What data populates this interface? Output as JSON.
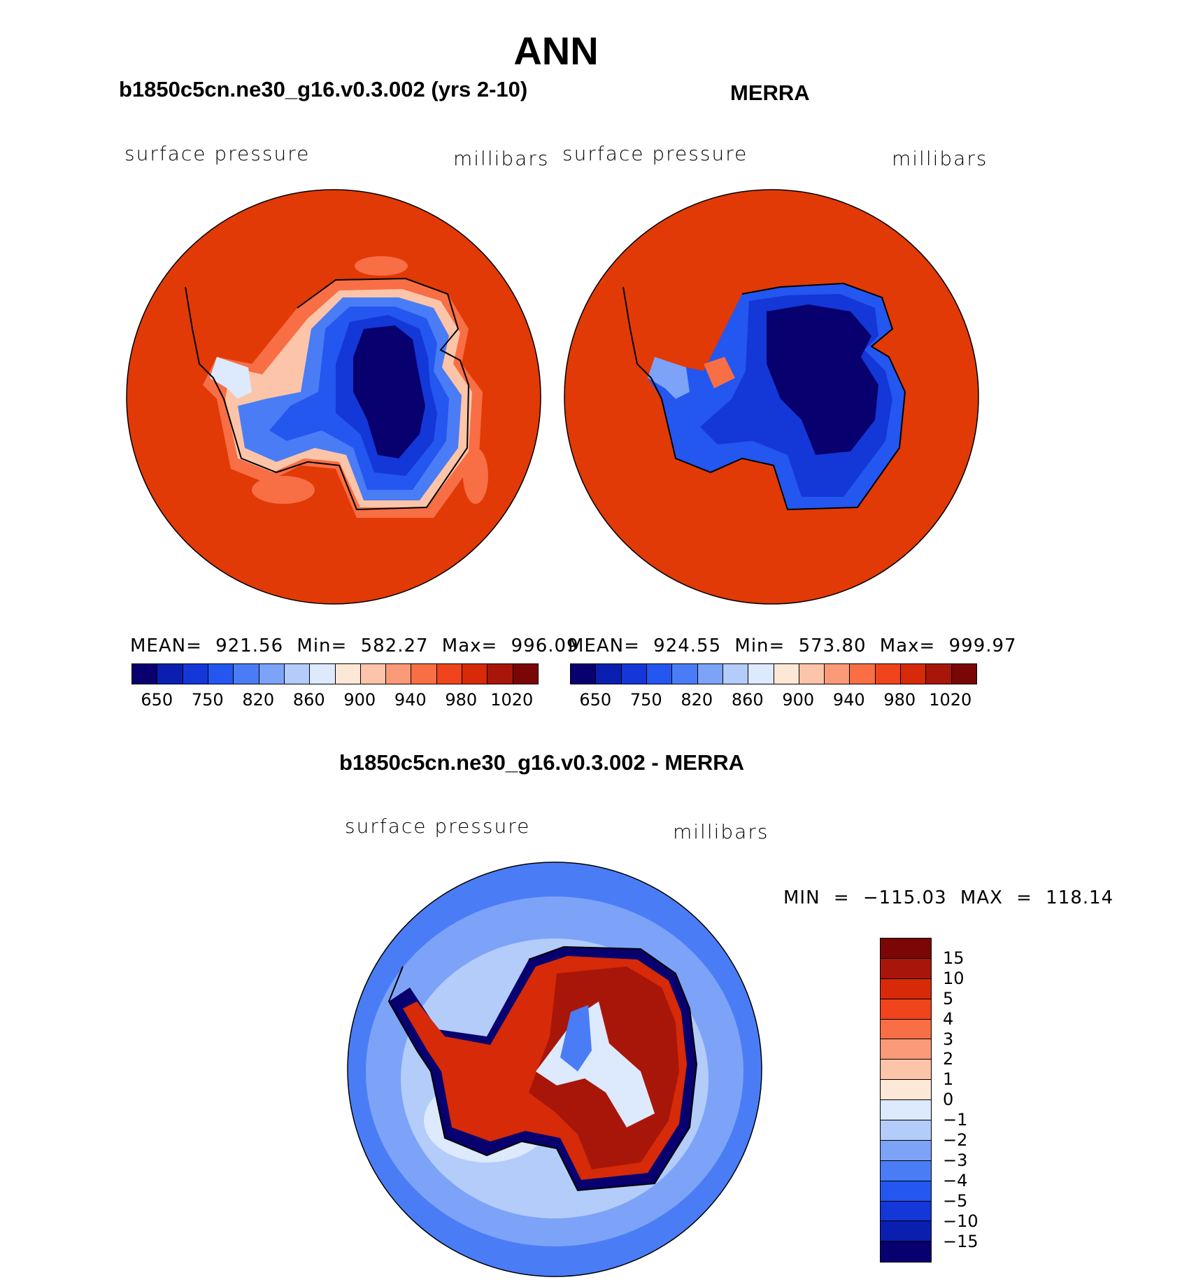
{
  "title": "ANN",
  "panels": [
    {
      "title": "b1850c5cn.ne30_g16.v0.3.002 (yrs 2-10)",
      "left_label": "surface pressure",
      "right_label": "millibars",
      "stats": "MEAN= 921.56   Min= 582.27   Max= 996.09"
    },
    {
      "title": "MERRA",
      "left_label": "surface pressure",
      "right_label": "millibars",
      "stats": "MEAN= 924.55   Min= 573.80   Max= 999.97"
    }
  ],
  "diff": {
    "title": "b1850c5cn.ne30_g16.v0.3.002 - MERRA",
    "left_label": "surface pressure",
    "right_label": "millibars",
    "stats": "MIN = −115.03  MAX = 118.14"
  },
  "colorbar": {
    "colors": [
      "#08006e",
      "#0a1fb0",
      "#1437d8",
      "#2456f0",
      "#4a7df5",
      "#7ca3f7",
      "#b3ccfa",
      "#dde9fc",
      "#fde8d8",
      "#fcc4a8",
      "#fb9a78",
      "#f86e45",
      "#f0441c",
      "#d62a08",
      "#a8160a",
      "#7a0606"
    ],
    "ticks": [
      "650",
      "750",
      "820",
      "860",
      "900",
      "940",
      "980",
      "1020"
    ]
  },
  "diff_colorbar": {
    "colors": [
      "#7a0606",
      "#a8160a",
      "#d62a08",
      "#f0441c",
      "#f86e45",
      "#fb9a78",
      "#fcc4a8",
      "#fde8d8",
      "#dde9fc",
      "#b3ccfa",
      "#7ca3f7",
      "#4a7df5",
      "#2456f0",
      "#1437d8",
      "#0a1fb0",
      "#08006e"
    ],
    "ticks": [
      "15",
      "10",
      "5",
      "4",
      "3",
      "2",
      "1",
      "0",
      "−1",
      "−2",
      "−3",
      "−4",
      "−5",
      "−10",
      "−15"
    ]
  }
}
